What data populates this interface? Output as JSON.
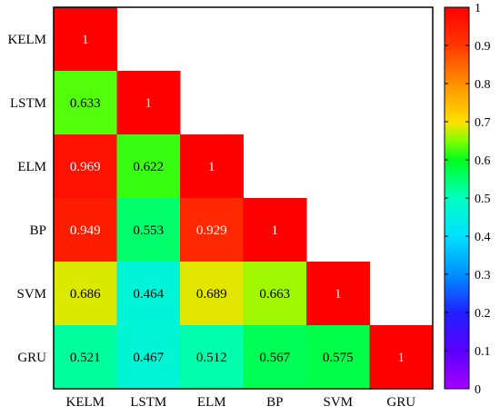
{
  "chart_data": {
    "type": "heatmap",
    "title": "",
    "xlabel": "",
    "ylabel": "",
    "categories": [
      "KELM",
      "LSTM",
      "ELM",
      "BP",
      "SVM",
      "GRU"
    ],
    "matrix": [
      [
        1,
        null,
        null,
        null,
        null,
        null
      ],
      [
        0.633,
        1,
        null,
        null,
        null,
        null
      ],
      [
        0.969,
        0.622,
        1,
        null,
        null,
        null
      ],
      [
        0.949,
        0.553,
        0.929,
        1,
        null,
        null
      ],
      [
        0.686,
        0.464,
        0.689,
        0.663,
        1,
        null
      ],
      [
        0.521,
        0.467,
        0.512,
        0.567,
        0.575,
        1
      ]
    ],
    "cell_labels": [
      [
        "1",
        null,
        null,
        null,
        null,
        null
      ],
      [
        "0.633",
        "1",
        null,
        null,
        null,
        null
      ],
      [
        "0.969",
        "0.622",
        "1",
        null,
        null,
        null
      ],
      [
        "0.949",
        "0.553",
        "0.929",
        "1",
        null,
        null
      ],
      [
        "0.686",
        "0.464",
        "0.689",
        "0.663",
        "1",
        null
      ],
      [
        "0.521",
        "0.467",
        "0.512",
        "0.567",
        "0.575",
        "1"
      ]
    ],
    "colorbar": {
      "range": [
        0,
        1
      ],
      "ticks": [
        "0",
        "0.1",
        "0.2",
        "0.3",
        "0.4",
        "0.5",
        "0.6",
        "0.7",
        "0.8",
        "0.9",
        "1"
      ],
      "colormap": "hsv-like (violet to red)"
    },
    "grid": false,
    "legend": "colorbar-right"
  }
}
